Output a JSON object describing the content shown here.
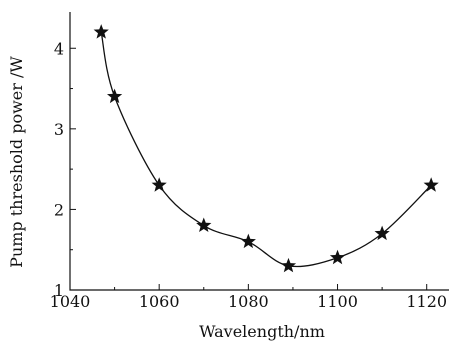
{
  "chart_data": {
    "type": "line",
    "xlabel": "Wavelength/nm",
    "ylabel": "Pump threshold power /W",
    "xlim": [
      1040,
      1125
    ],
    "ylim": [
      1,
      4.45
    ],
    "x_ticks": [
      1040,
      1060,
      1080,
      1100,
      1120
    ],
    "y_ticks": [
      1,
      2,
      3,
      4
    ],
    "grid": false,
    "marker": "star",
    "series": [
      {
        "x": [
          1047,
          1050,
          1060,
          1070,
          1080,
          1089,
          1100,
          1110,
          1121
        ],
        "values": [
          4.2,
          3.4,
          2.3,
          1.8,
          1.6,
          1.3,
          1.4,
          1.7,
          2.3
        ]
      }
    ]
  }
}
